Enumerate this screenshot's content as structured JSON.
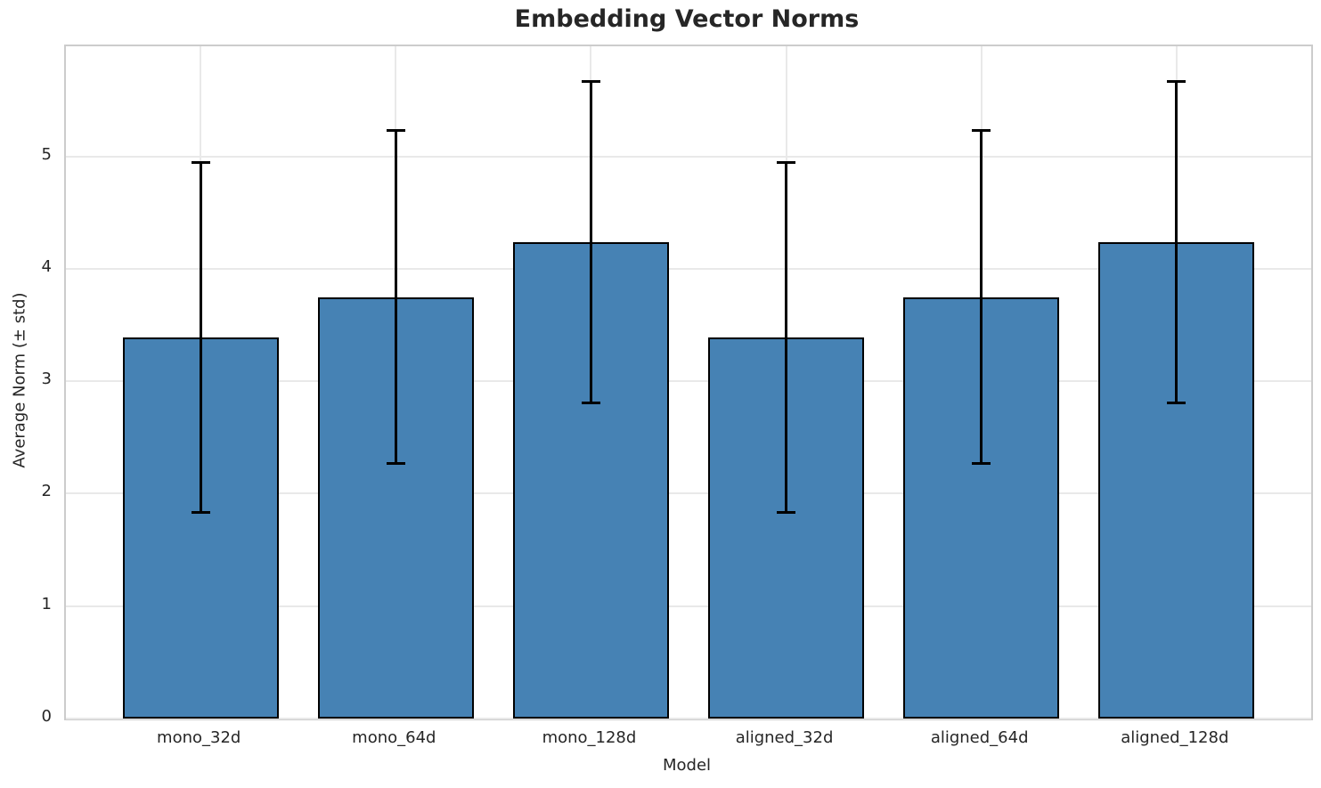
{
  "chart_data": {
    "type": "bar",
    "title": "Embedding Vector Norms",
    "xlabel": "Model",
    "ylabel": "Average Norm (± std)",
    "categories": [
      "mono_32d",
      "mono_64d",
      "mono_128d",
      "aligned_32d",
      "aligned_64d",
      "aligned_128d"
    ],
    "values": [
      3.39,
      3.75,
      4.24,
      3.39,
      3.75,
      4.24
    ],
    "errors": [
      1.56,
      1.48,
      1.43,
      1.56,
      1.48,
      1.43
    ],
    "yticks": [
      0,
      1,
      2,
      3,
      4,
      5
    ],
    "ylim": [
      0,
      5.98
    ],
    "bar_width_fraction": 0.8,
    "xlim": [
      -0.69,
      5.69
    ],
    "legend": "none",
    "grid": "on",
    "colors": {
      "bar_fill": "#4682B4",
      "bar_edge": "#000000",
      "error_bar": "#000000",
      "grid_line": "#e9e9e9",
      "spine": "#cccccc",
      "text": "#262626",
      "background": "#ffffff"
    }
  }
}
